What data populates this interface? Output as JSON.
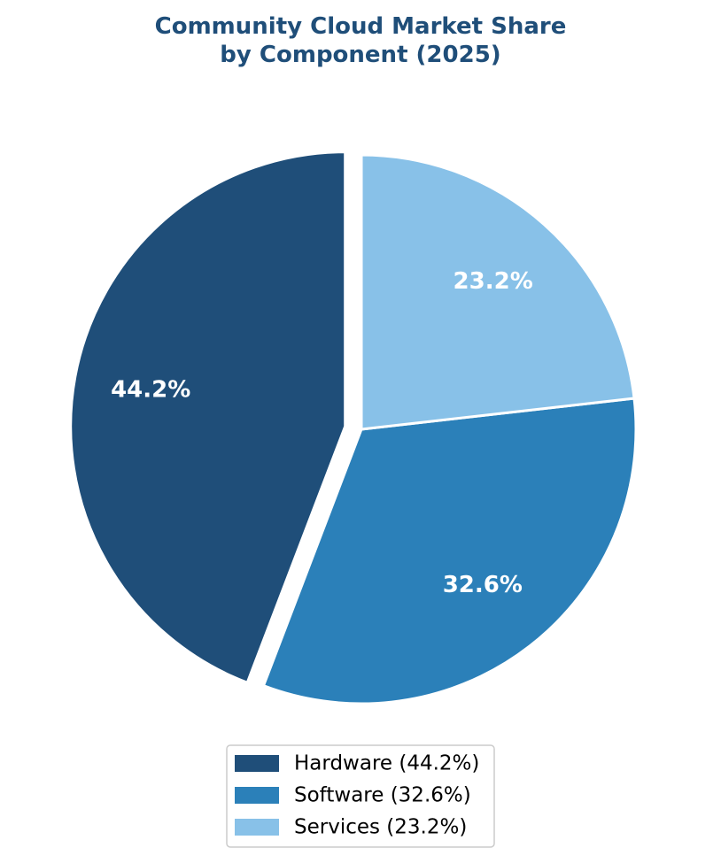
{
  "chart_data": {
    "type": "pie",
    "title_lines": [
      "Community Cloud Market Share",
      "by Component (2025)"
    ],
    "categories": [
      "Hardware (44.2%)",
      "Software (32.6%)",
      "Services (23.2%)"
    ],
    "values": [
      44.2,
      32.6,
      23.2
    ],
    "value_labels": [
      "44.2%",
      "32.6%",
      "23.2%"
    ],
    "colors": [
      "#1f4e79",
      "#2b80b9",
      "#88c1e8"
    ],
    "explode": [
      0.06,
      0,
      0
    ],
    "startangle": 90,
    "legend": "lower center"
  }
}
